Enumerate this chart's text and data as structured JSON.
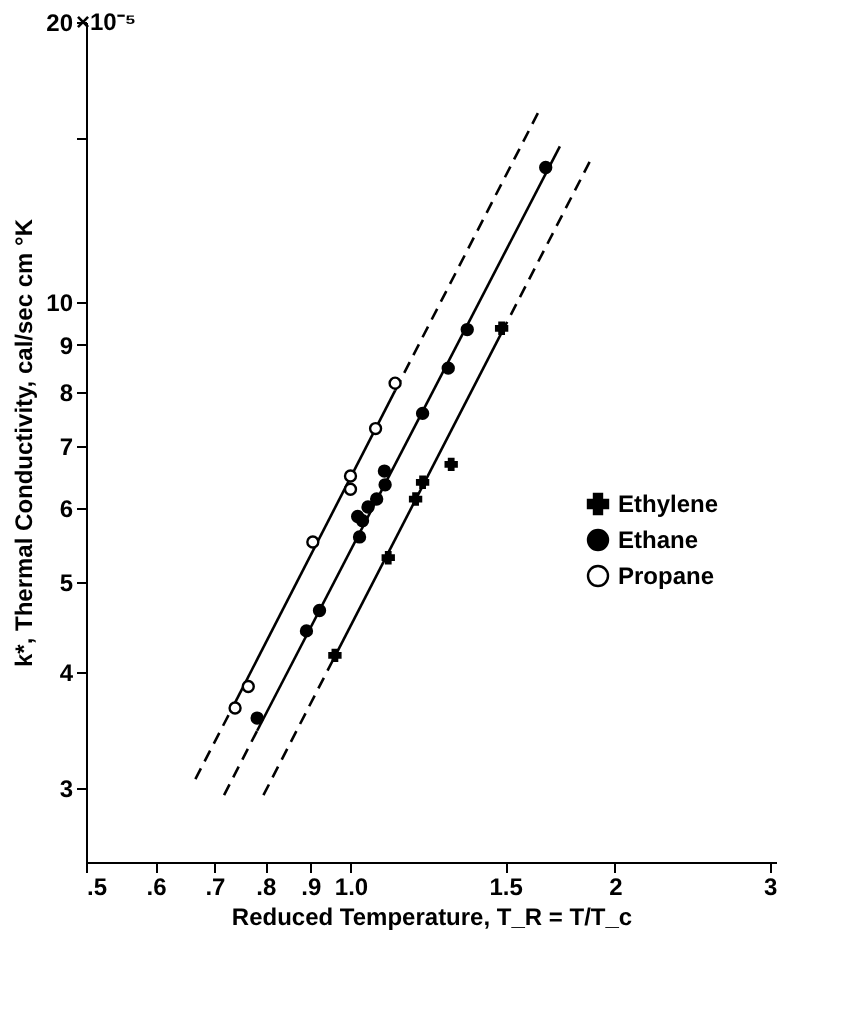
{
  "chart_data": {
    "type": "scatter",
    "xlabel": "Reduced Temperature, T_R = T/T_c",
    "ylabel": "k*, Thermal Conductivity, cal/sec cm °K",
    "annotations": [
      "×10⁻⁵"
    ],
    "log": "xy",
    "grid": false,
    "legend": "right",
    "xlim": [
      0.5,
      3.05
    ],
    "xticks": [
      {
        "value": 0.5,
        "label": ".5"
      },
      {
        "value": 0.6,
        "label": ".6"
      },
      {
        "value": 0.7,
        "label": ".7"
      },
      {
        "value": 0.8,
        "label": ".8"
      },
      {
        "value": 0.9,
        "label": ".9"
      },
      {
        "value": 1.0,
        "label": "1.0"
      },
      1.5,
      2,
      3
    ],
    "ylim": [
      2.5,
      20
    ],
    "yticks": [
      3,
      4,
      5,
      6,
      7,
      8,
      9,
      10,
      {
        "value": 15,
        "label": null
      },
      20
    ],
    "series": [
      {
        "name": "Ethylene",
        "marker": "cross",
        "color": "#000000",
        "x": [
          0.96,
          1.104,
          1.186,
          1.208,
          1.302,
          1.486
        ],
        "values": [
          4.17,
          5.31,
          6.14,
          6.4,
          6.69,
          9.37
        ]
      },
      {
        "name": "Ethane",
        "marker": "circle",
        "color": "#000000",
        "x": [
          0.783,
          0.891,
          0.922,
          1.024,
          1.019,
          1.032,
          1.047,
          1.071,
          1.093,
          1.095,
          1.208,
          1.292,
          1.358,
          1.668
        ],
        "values": [
          3.57,
          4.43,
          4.66,
          5.59,
          5.88,
          5.82,
          6.02,
          6.14,
          6.58,
          6.36,
          7.59,
          8.49,
          9.34,
          13.95
        ]
      },
      {
        "name": "Propane",
        "marker": "circle",
        "color": "#ffffff",
        "x": [
          0.739,
          0.765,
          0.906,
          1.0,
          1.0,
          1.068,
          1.124
        ],
        "values": [
          3.66,
          3.86,
          5.52,
          6.5,
          6.29,
          7.31,
          8.18
        ]
      },
      {
        "type": "line",
        "line_style": "solid",
        "color": "#000000",
        "x": [
          0.739,
          1.124
        ],
        "values": [
          3.71,
          8.03
        ]
      },
      {
        "type": "line",
        "line_style": "solid",
        "color": "#000000",
        "x": [
          0.783,
          1.731
        ],
        "values": [
          3.46,
          14.7
        ]
      },
      {
        "type": "line",
        "line_style": "solid",
        "color": "#000000",
        "x": [
          0.96,
          1.486
        ],
        "values": [
          4.16,
          9.27
        ]
      },
      {
        "type": "line",
        "line_style": "dashed",
        "color": "#000000",
        "x": [
          0.666,
          0.739,
          null,
          1.124,
          1.642,
          null,
          0.718,
          0.783,
          null,
          0.796,
          0.96,
          null,
          1.486,
          1.879
        ],
        "values": [
          3.07,
          3.71,
          null,
          8.03,
          16.1,
          null,
          2.95,
          3.46,
          null,
          2.95,
          4.16,
          null,
          9.27,
          14.25
        ]
      }
    ]
  }
}
